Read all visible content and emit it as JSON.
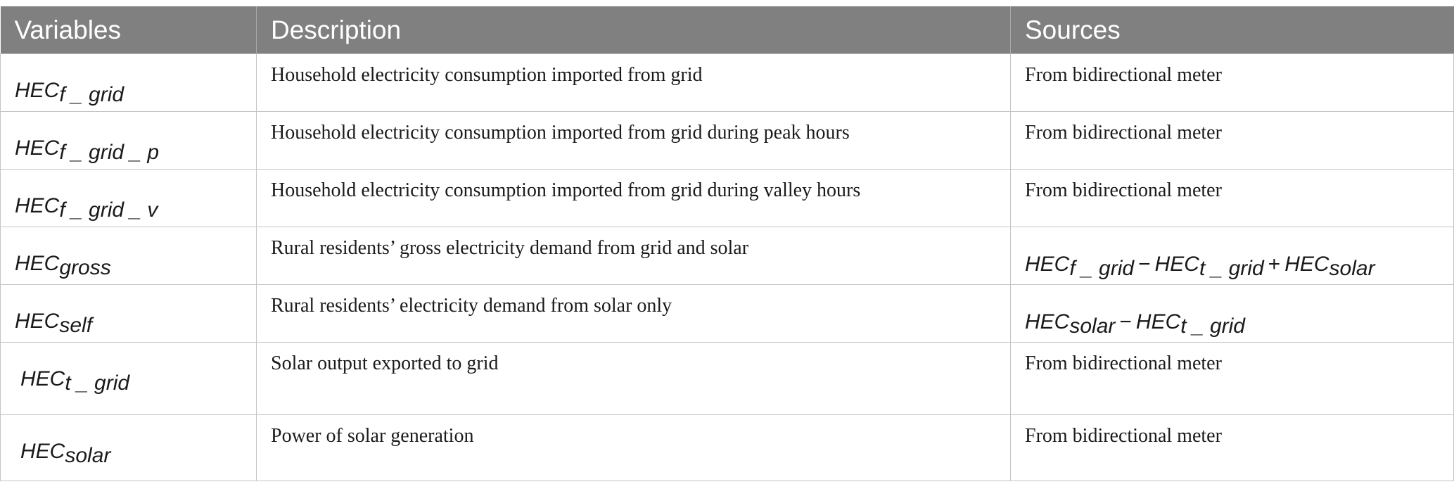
{
  "table": {
    "headers": {
      "variables": "Variables",
      "description": "Description",
      "sources": "Sources"
    },
    "rows": [
      {
        "var_base": "HEC",
        "var_sub": "f _ grid",
        "description": "Household electricity consumption imported from grid",
        "source": "From bidirectional meter"
      },
      {
        "var_base": "HEC",
        "var_sub": "f _ grid _ p",
        "description": "Household electricity consumption imported from grid during peak hours",
        "source": "From bidirectional meter"
      },
      {
        "var_base": "HEC",
        "var_sub": "f _ grid _ v",
        "description": "Household electricity consumption imported from grid during valley hours",
        "source": "From bidirectional meter"
      },
      {
        "var_base": "HEC",
        "var_sub": "gross",
        "description": "Rural residents’ gross electricity demand from grid and solar",
        "formula": {
          "t1_base": "HEC",
          "t1_sub": "f _ grid",
          "op1": "−",
          "t2_base": "HEC",
          "t2_sub": "t _ grid",
          "op2": "+",
          "t3_base": "HEC",
          "t3_sub": "solar"
        }
      },
      {
        "var_base": "HEC",
        "var_sub": "self",
        "description": "Rural residents’ electricity demand from solar only",
        "formula": {
          "t1_base": "HEC",
          "t1_sub": "solar",
          "op1": "−",
          "t2_base": "HEC",
          "t2_sub": "t _ grid"
        }
      },
      {
        "var_base": "HEC",
        "var_sub": "t _ grid",
        "description": "Solar output exported to grid",
        "source": "From bidirectional meter"
      },
      {
        "var_base": "HEC",
        "var_sub": "solar",
        "description": "Power of solar generation",
        "source": "From bidirectional meter"
      }
    ]
  }
}
